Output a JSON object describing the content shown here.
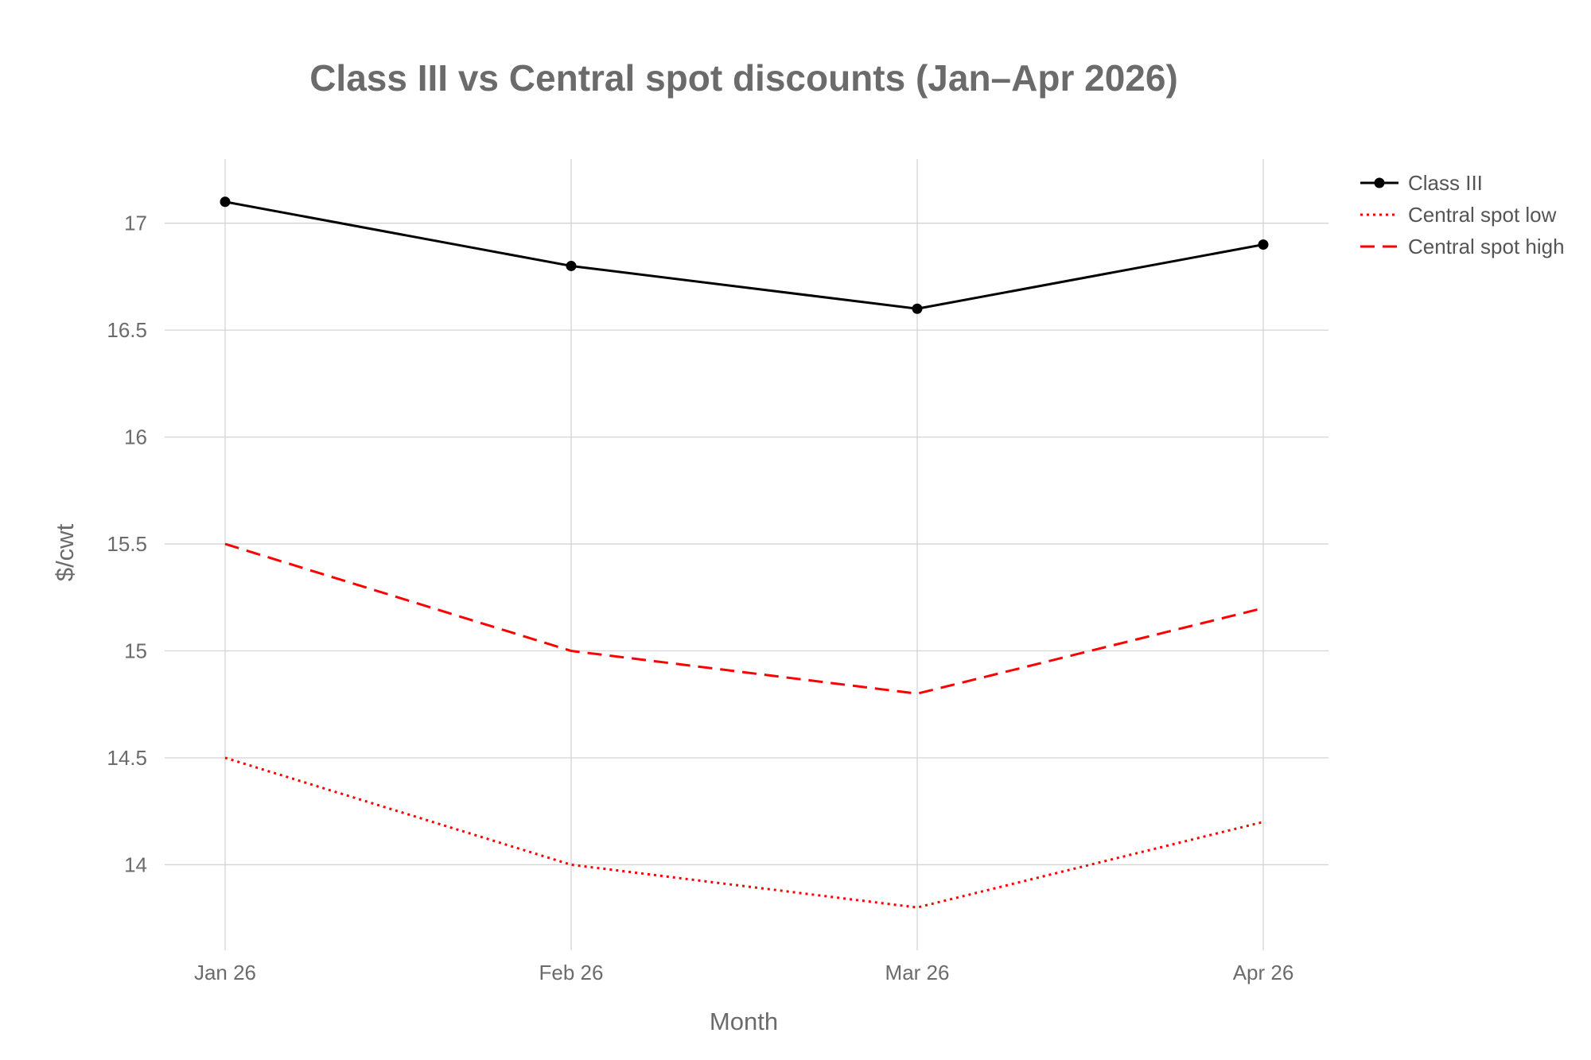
{
  "chart_data": {
    "type": "line",
    "title": "Class III vs Central spot discounts (Jan–Apr 2026)",
    "xlabel": "Month",
    "ylabel": "$/cwt",
    "categories": [
      "Jan 26",
      "Feb 26",
      "Mar 26",
      "Apr 26"
    ],
    "ylim": [
      13.6,
      17.3
    ],
    "yticks": [
      14,
      14.5,
      15,
      15.5,
      16,
      16.5,
      17
    ],
    "yticklabels": [
      "14",
      "14.5",
      "15",
      "15.5",
      "16",
      "16.5",
      "17"
    ],
    "grid": true,
    "legend_position": "top-right",
    "series": [
      {
        "name": "Class III",
        "values": [
          17.1,
          16.8,
          16.6,
          16.9
        ],
        "color": "#000000",
        "dash": "solid",
        "markers": true
      },
      {
        "name": "Central spot low",
        "values": [
          14.5,
          14.0,
          13.8,
          14.2
        ],
        "color": "#ff0000",
        "dash": "dot",
        "markers": false
      },
      {
        "name": "Central spot high",
        "values": [
          15.5,
          15.0,
          14.8,
          15.2
        ],
        "color": "#ff0000",
        "dash": "dash",
        "markers": false
      }
    ]
  }
}
